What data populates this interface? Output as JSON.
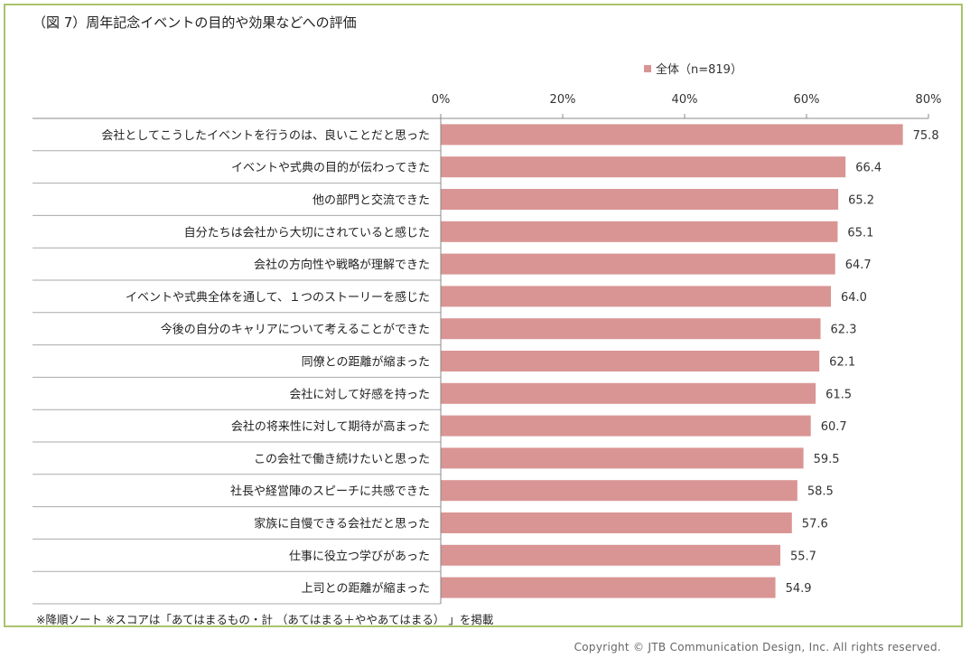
{
  "title": "（図 7）周年記念イベントの目的や効果などへの評価",
  "legend_label": "全体（n=819）",
  "note": "※降順ソート ※スコアは「あてはまるもの・計 （あてはまる＋ややあてはまる） 」を掲載",
  "copyright": "Copyright © JTB Communication Design, Inc. All rights reserved.",
  "chart_data": {
    "type": "bar",
    "orientation": "horizontal",
    "title": "（図 7）周年記念イベントの目的や効果などへの評価",
    "categories": [
      "会社としてこうしたイベントを行うのは、良いことだと思った",
      "イベントや式典の目的が伝わってきた",
      "他の部門と交流できた",
      "自分たちは会社から大切にされていると感じた",
      "会社の方向性や戦略が理解できた",
      "イベントや式典全体を通して、１つのストーリーを感じた",
      "今後の自分のキャリアについて考えることができた",
      "同僚との距離が縮まった",
      "会社に対して好感を持った",
      "会社の将来性に対して期待が高まった",
      "この会社で働き続けたいと思った",
      "社長や経営陣のスピーチに共感できた",
      "家族に自慢できる会社だと思った",
      "仕事に役立つ学びがあった",
      "上司との距離が縮まった"
    ],
    "series": [
      {
        "name": "全体（n=819）",
        "values": [
          75.8,
          66.4,
          65.2,
          65.1,
          64.7,
          64.0,
          62.3,
          62.1,
          61.5,
          60.7,
          59.5,
          58.5,
          57.6,
          55.7,
          54.9
        ],
        "value_labels": [
          "75.8",
          "66.4",
          "65.2",
          "65.1",
          "64.7",
          "64.0",
          "62.3",
          "62.1",
          "61.5",
          "60.7",
          "59.5",
          "58.5",
          "57.6",
          "55.7",
          "54.9"
        ],
        "color": "#d99594"
      }
    ],
    "xlim": [
      0,
      80
    ],
    "xticks": [
      0,
      20,
      40,
      60,
      80
    ],
    "xtick_labels": [
      "0%",
      "20%",
      "40%",
      "60%",
      "80%"
    ],
    "xaxis_position": "top",
    "legend_position": "top-right",
    "grid": false
  }
}
